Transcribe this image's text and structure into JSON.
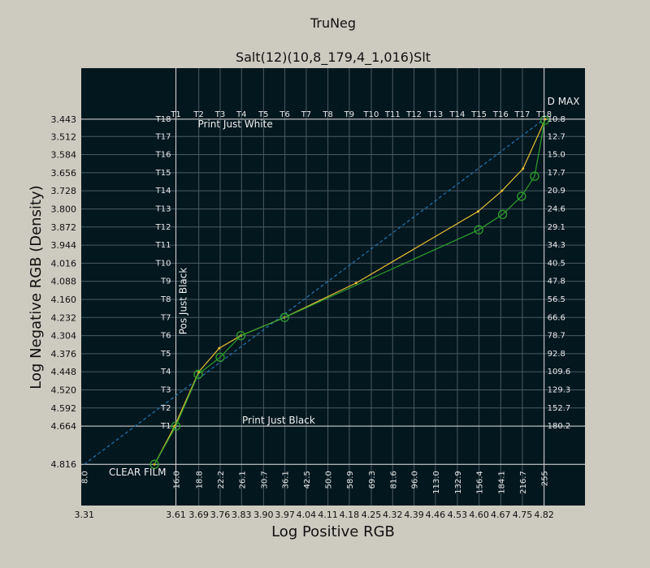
{
  "chart_data": {
    "type": "line",
    "title": "TruNeg",
    "subtitle": "Salt(12)(10,8_179,4_1,016)Slt",
    "xlabel": "Log Positive RGB",
    "ylabel": "Log Negative RGB (Density)",
    "xlim": [
      3.3,
      4.95
    ],
    "ylim": [
      4.98,
      3.24
    ],
    "grid": true,
    "background": "#03171f",
    "grid_color": "#4a5a63",
    "x_ticks": [
      "3.31",
      "3.61",
      "3.69",
      "3.76",
      "3.83",
      "3.90",
      "3.97",
      "4.04",
      "4.11",
      "4.18",
      "4.25",
      "4.32",
      "4.39",
      "4.46",
      "4.53",
      "4.60",
      "4.67",
      "4.75",
      "4.82"
    ],
    "x_tick_values": [
      3.31,
      3.61,
      3.685,
      3.755,
      3.825,
      3.897,
      3.967,
      4.037,
      4.108,
      4.178,
      4.25,
      4.32,
      4.39,
      4.46,
      4.532,
      4.603,
      4.674,
      4.745,
      4.816
    ],
    "y_ticks": [
      "3.443",
      "3.512",
      "3.584",
      "3.656",
      "3.728",
      "3.800",
      "3.872",
      "3.944",
      "4.016",
      "4.088",
      "4.160",
      "4.232",
      "4.304",
      "4.376",
      "4.448",
      "4.520",
      "4.592",
      "4.664",
      "4.816"
    ],
    "y_tick_values": [
      3.443,
      3.512,
      3.584,
      3.656,
      3.728,
      3.8,
      3.872,
      3.944,
      4.016,
      4.088,
      4.16,
      4.232,
      4.304,
      4.376,
      4.448,
      4.52,
      4.592,
      4.664,
      4.816
    ],
    "step_labels_left": [
      "T18",
      "T17",
      "T16",
      "T15",
      "T14",
      "T13",
      "T12",
      "T11",
      "T10",
      "T9",
      "T8",
      "T7",
      "T6",
      "T5",
      "T4",
      "T3",
      "T2",
      "T1"
    ],
    "step_labels_top": [
      "T1",
      "T2",
      "T3",
      "T4",
      "T5",
      "T6",
      "T7",
      "T8",
      "T9",
      "T10",
      "T11",
      "T12",
      "T13",
      "T14",
      "T15",
      "T16",
      "T17",
      "T18"
    ],
    "right_labels": [
      "10.8",
      "12.7",
      "15.0",
      "17.7",
      "20.9",
      "24.6",
      "29.1",
      "34.3",
      "40.5",
      "47.8",
      "56.5",
      "66.6",
      "78.7",
      "92.8",
      "109.6",
      "129.3",
      "152.7",
      "180.2"
    ],
    "bottom_labels": [
      "8.0",
      "16.0",
      "18.8",
      "22.2",
      "26.1",
      "30.7",
      "36.1",
      "42.5",
      "50.0",
      "58.9",
      "69.3",
      "81.6",
      "96.0",
      "113.0",
      "132.9",
      "156.4",
      "184.1",
      "216.7",
      "255"
    ],
    "bottom_label_x": [
      3.31,
      3.61,
      3.685,
      3.755,
      3.825,
      3.897,
      3.967,
      4.037,
      4.108,
      4.178,
      4.25,
      4.32,
      4.39,
      4.46,
      4.532,
      4.603,
      4.674,
      4.745,
      4.816
    ],
    "annotations": {
      "d_max": "D MAX",
      "print_just_white": "Print Just White",
      "print_just_black": "Print Just Black",
      "pos_just_black": "Pos Just Black",
      "clear_film": "CLEAR FILM"
    },
    "series": [
      {
        "color": "#1f77b4",
        "style": "dashed",
        "x": [
          3.31,
          4.816
        ],
        "y": [
          4.816,
          3.443
        ]
      },
      {
        "color": "#e8c030",
        "style": "solid",
        "x": [
          3.54,
          3.606,
          3.685,
          3.752,
          3.823,
          3.965,
          4.2,
          4.6,
          4.678,
          4.747,
          4.82
        ],
        "y": [
          4.816,
          4.664,
          4.448,
          4.354,
          4.304,
          4.232,
          4.095,
          3.81,
          3.728,
          3.64,
          3.443
        ]
      },
      {
        "color": "#2ca02c",
        "style": "solid",
        "marker": "circle",
        "x": [
          3.54,
          3.61,
          3.683,
          3.755,
          3.823,
          3.966,
          4.602,
          4.68,
          4.742,
          4.785,
          4.818
        ],
        "y": [
          4.816,
          4.664,
          4.458,
          4.39,
          4.304,
          4.232,
          3.883,
          3.822,
          3.75,
          3.67,
          3.447
        ]
      }
    ]
  }
}
